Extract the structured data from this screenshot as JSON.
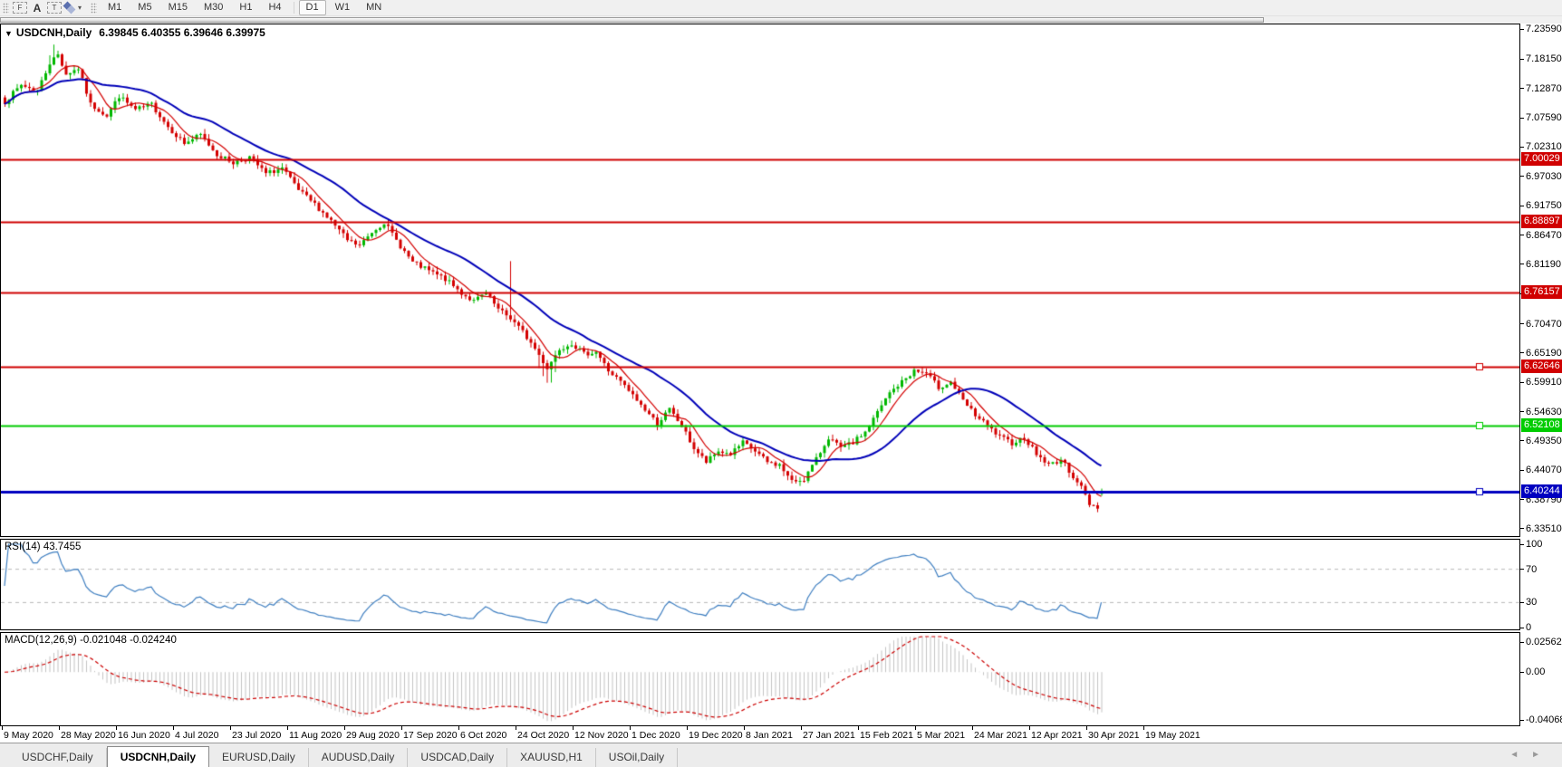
{
  "toolbar": {
    "icons": {
      "floating_handle": "F",
      "text_tool": "A",
      "label_tool": "T",
      "arrows_dropdown": "▾"
    },
    "timeframes": [
      "M1",
      "M5",
      "M15",
      "M30",
      "H1",
      "H4",
      "D1",
      "W1",
      "MN"
    ],
    "active_timeframe": "D1"
  },
  "chart": {
    "symbol_dropdown_icon": "▼",
    "title_symbol": "USDCNH,Daily",
    "ohlc": "6.39845 6.40355 6.39646 6.39975"
  },
  "rsi_pane": {
    "label": "RSI(14) 43.7455"
  },
  "macd_pane": {
    "label": "MACD(12,26,9) -0.021048 -0.024240"
  },
  "tabs": {
    "items": [
      "USDCHF,Daily",
      "USDCNH,Daily",
      "EURUSD,Daily",
      "AUDUSD,Daily",
      "USDCAD,Daily",
      "XAUUSD,H1",
      "USOil,Daily"
    ],
    "active": "USDCNH,Daily",
    "scroll_left_icon": "◄",
    "scroll_right_icon": "►"
  },
  "chart_data": {
    "type": "candlestick",
    "symbol": "USDCNH",
    "timeframe": "Daily",
    "last_ohlc": {
      "open": 6.39845,
      "high": 6.40355,
      "low": 6.39646,
      "close": 6.39975
    },
    "up_color": "#00b800",
    "down_color": "#d40000",
    "y_axis": {
      "price_top": 7.2442,
      "price_bottom": 6.322,
      "ticks": [
        "7.23590",
        "7.18150",
        "7.12870",
        "7.07590",
        "7.02310",
        "6.97030",
        "6.91750",
        "6.86470",
        "6.81190",
        "6.75910",
        "6.70470",
        "6.65190",
        "6.59910",
        "6.54630",
        "6.49350",
        "6.44070",
        "6.38790",
        "6.33510"
      ]
    },
    "x_axis": {
      "labels": [
        "9 May 2020",
        "28 May 2020",
        "16 Jun 2020",
        "4 Jul 2020",
        "23 Jul 2020",
        "11 Aug 2020",
        "29 Aug 2020",
        "17 Sep 2020",
        "6 Oct 2020",
        "24 Oct 2020",
        "12 Nov 2020",
        "1 Dec 2020",
        "19 Dec 2020",
        "8 Jan 2021",
        "27 Jan 2021",
        "15 Feb 2021",
        "5 Mar 2021",
        "24 Mar 2021",
        "12 Apr 2021",
        "30 Apr 2021",
        "19 May 2021"
      ],
      "first_tick_x": 2,
      "tick_spacing": 63
    },
    "levels": [
      {
        "label": "7.00029",
        "value": 7.00029,
        "color": "#d00000",
        "line_width": 2,
        "handle": false
      },
      {
        "label": "6.88897",
        "value": 6.88897,
        "color": "#d00000",
        "line_width": 2,
        "handle": false
      },
      {
        "label": "6.76157",
        "value": 6.76157,
        "color": "#d00000",
        "line_width": 2,
        "handle": false
      },
      {
        "label": "6.62646",
        "value": 6.62646,
        "color": "#d00000",
        "line_width": 2,
        "handle": true
      },
      {
        "label": "6.52108",
        "value": 6.52108,
        "color": "#00cc00",
        "line_width": 2,
        "handle": true
      },
      {
        "label": "6.40244",
        "value": 6.40244,
        "color": "#0000c0",
        "line_width": 3,
        "handle": true
      }
    ],
    "ma_fast": {
      "period": 7,
      "color": "#d40000"
    },
    "ma_slow": {
      "period": 25,
      "color": "#0000b8"
    },
    "rsi": {
      "period": 14,
      "current": 43.7455,
      "color": "#3f7fc1",
      "levels": [
        70,
        30
      ],
      "ticks": [
        "100",
        "70",
        "30",
        "0"
      ],
      "tick_values": [
        100,
        70,
        30,
        0
      ]
    },
    "macd": {
      "fast": 12,
      "slow": 26,
      "signal": 9,
      "macd_value": -0.021048,
      "signal_value": -0.02424,
      "histogram_color": "#c4c4c4",
      "signal_color": "#cc0000",
      "ticks": [
        "0.025623",
        "0.00",
        "-0.040687"
      ],
      "tick_values": [
        0.025623,
        0.0,
        -0.040687
      ]
    },
    "bars_total": 270,
    "bar_step": 4.5,
    "price_path": [
      [
        0,
        7.105
      ],
      [
        4,
        7.135
      ],
      [
        8,
        7.125
      ],
      [
        11,
        7.175
      ],
      [
        13,
        7.19
      ],
      [
        15,
        7.155
      ],
      [
        18,
        7.165
      ],
      [
        21,
        7.1
      ],
      [
        25,
        7.08
      ],
      [
        28,
        7.115
      ],
      [
        32,
        7.09
      ],
      [
        36,
        7.1
      ],
      [
        40,
        7.06
      ],
      [
        44,
        7.03
      ],
      [
        48,
        7.045
      ],
      [
        52,
        7.01
      ],
      [
        56,
        6.995
      ],
      [
        60,
        7.005
      ],
      [
        64,
        6.975
      ],
      [
        68,
        6.985
      ],
      [
        72,
        6.945
      ],
      [
        76,
        6.92
      ],
      [
        80,
        6.89
      ],
      [
        84,
        6.855
      ],
      [
        87,
        6.845
      ],
      [
        90,
        6.87
      ],
      [
        93,
        6.888
      ],
      [
        96,
        6.855
      ],
      [
        100,
        6.815
      ],
      [
        104,
        6.8
      ],
      [
        108,
        6.785
      ],
      [
        112,
        6.76
      ],
      [
        115,
        6.745
      ],
      [
        118,
        6.76
      ],
      [
        121,
        6.73
      ],
      [
        124,
        6.715
      ],
      [
        127,
        6.69
      ],
      [
        130,
        6.66
      ],
      [
        133,
        6.625
      ],
      [
        136,
        6.66
      ],
      [
        139,
        6.67
      ],
      [
        142,
        6.65
      ],
      [
        145,
        6.655
      ],
      [
        148,
        6.62
      ],
      [
        151,
        6.6
      ],
      [
        154,
        6.575
      ],
      [
        157,
        6.55
      ],
      [
        160,
        6.525
      ],
      [
        163,
        6.55
      ],
      [
        166,
        6.52
      ],
      [
        169,
        6.48
      ],
      [
        172,
        6.455
      ],
      [
        175,
        6.475
      ],
      [
        178,
        6.47
      ],
      [
        181,
        6.49
      ],
      [
        184,
        6.475
      ],
      [
        187,
        6.455
      ],
      [
        190,
        6.45
      ],
      [
        193,
        6.42
      ],
      [
        196,
        6.425
      ],
      [
        199,
        6.46
      ],
      [
        202,
        6.5
      ],
      [
        205,
        6.48
      ],
      [
        208,
        6.49
      ],
      [
        211,
        6.51
      ],
      [
        214,
        6.545
      ],
      [
        217,
        6.58
      ],
      [
        220,
        6.6
      ],
      [
        223,
        6.62
      ],
      [
        226,
        6.615
      ],
      [
        229,
        6.59
      ],
      [
        232,
        6.6
      ],
      [
        235,
        6.565
      ],
      [
        238,
        6.54
      ],
      [
        241,
        6.52
      ],
      [
        244,
        6.5
      ],
      [
        247,
        6.49
      ],
      [
        250,
        6.5
      ],
      [
        253,
        6.47
      ],
      [
        256,
        6.45
      ],
      [
        259,
        6.46
      ],
      [
        262,
        6.43
      ],
      [
        264,
        6.41
      ],
      [
        266,
        6.38
      ],
      [
        268,
        6.375
      ],
      [
        269,
        6.39975
      ]
    ]
  }
}
